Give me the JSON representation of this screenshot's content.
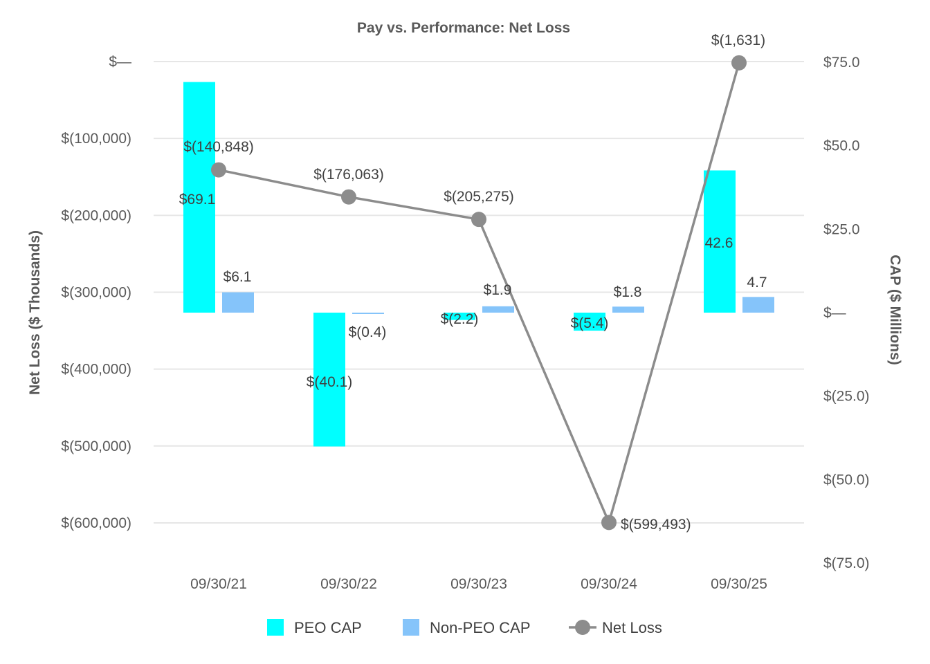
{
  "chart_data": {
    "type": "bar",
    "title": "Pay vs. Performance: Net Loss",
    "categories": [
      "09/30/21",
      "09/30/22",
      "09/30/23",
      "09/30/24",
      "09/30/25"
    ],
    "left_axis": {
      "label": "Net Loss ($ Thousands)",
      "range": [
        -650000,
        10000
      ],
      "ticks": [
        0,
        -100000,
        -200000,
        -300000,
        -400000,
        -500000,
        -600000
      ],
      "tick_labels": [
        "$—",
        "$(100,000)",
        "$(200,000)",
        "$(300,000)",
        "$(400,000)",
        "$(500,000)",
        "$(600,000)"
      ]
    },
    "right_axis": {
      "label": "CAP ($ Millions)",
      "range": [
        -75,
        75
      ],
      "ticks": [
        75,
        50,
        25,
        0,
        -25,
        -50,
        -75
      ],
      "tick_labels": [
        "$75.0",
        "$50.0",
        "$25.0",
        "$—",
        "$(25.0)",
        "$(50.0)",
        "$(75.0)"
      ]
    },
    "grid": true,
    "legend_position": "bottom",
    "series": [
      {
        "name": "PEO CAP",
        "type": "bar",
        "axis": "right",
        "color": "#00FFFF",
        "values": [
          69.1,
          -40.1,
          -2.2,
          -5.4,
          42.6
        ],
        "labels": [
          "$69.1",
          "$(40.1)",
          "$(2.2)",
          "$(5.4)",
          "42.6"
        ]
      },
      {
        "name": "Non-PEO CAP",
        "type": "bar",
        "axis": "right",
        "color": "#85C4FA",
        "values": [
          6.1,
          -0.4,
          1.9,
          1.8,
          4.7
        ],
        "labels": [
          "$6.1",
          "$(0.4)",
          "$1.9",
          "$1.8",
          "4.7"
        ]
      },
      {
        "name": "Net Loss",
        "type": "line",
        "axis": "left",
        "color": "#8C8C8C",
        "values": [
          -140848,
          -176063,
          -205275,
          -599493,
          -1631
        ],
        "labels": [
          "$(140,848)",
          "$(176,063)",
          "$(205,275)",
          "$(599,493)",
          "$(1,631)"
        ]
      }
    ]
  }
}
